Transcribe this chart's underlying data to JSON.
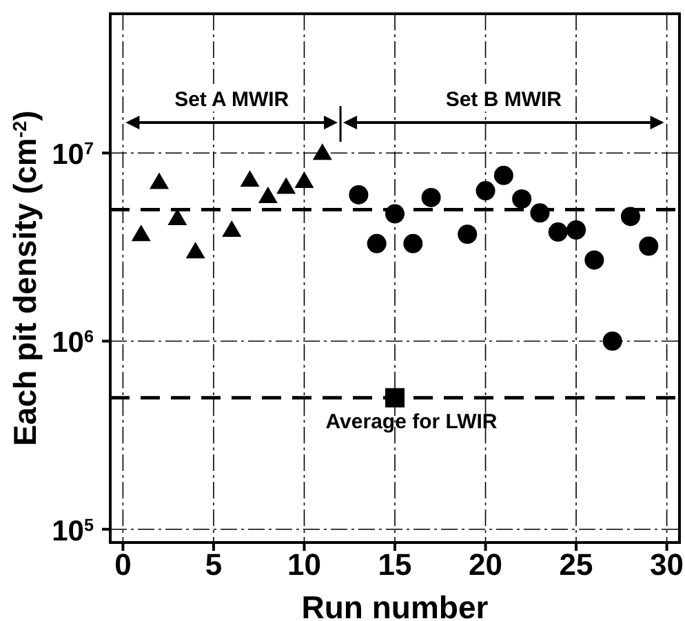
{
  "chart_data": {
    "type": "scatter",
    "xlabel": "Run number",
    "ylabel": "Each pit density (cm$^{-2}$)",
    "xlim": [
      -0.7,
      30.7
    ],
    "xticks": [
      0,
      5,
      10,
      15,
      20,
      25,
      30
    ],
    "ylim": [
      85000,
      55000000
    ],
    "yticks": [
      {
        "value": 100000,
        "label": "10$^{5}$"
      },
      {
        "value": 1000000,
        "label": "10$^{6}$"
      },
      {
        "value": 10000000,
        "label": "10$^{7}$"
      }
    ],
    "log": "y",
    "grid": true,
    "legend": false,
    "series": [
      {
        "color": "#000000",
        "marker": "triangle",
        "x": [
          1,
          2,
          3,
          4,
          6,
          7,
          8,
          9,
          10,
          11
        ],
        "values": [
          3700000,
          7000000,
          4500000,
          3000000,
          3900000,
          7200000,
          5900000,
          6600000,
          7100000,
          10000000
        ]
      },
      {
        "color": "#000000",
        "marker": "circle",
        "x": [
          13,
          14,
          15,
          16,
          17,
          19,
          20,
          21,
          22,
          23,
          24,
          25,
          26,
          27,
          28,
          29
        ],
        "values": [
          6000000,
          3300000,
          4750000,
          3300000,
          5800000,
          3700000,
          6300000,
          7600000,
          5700000,
          4800000,
          3800000,
          3900000,
          2700000,
          1000000,
          4600000,
          3200000
        ]
      },
      {
        "color": "#000000",
        "marker": "square",
        "x": [
          15
        ],
        "values": [
          500000
        ]
      }
    ],
    "ref_lines": [
      {
        "axis": "y",
        "value": 5000000,
        "line_style": "dashed"
      },
      {
        "axis": "y",
        "value": 500000,
        "label": "Average for LWIR",
        "line_style": "dashed"
      }
    ],
    "annotations": [
      "Set A MWIR",
      "Set B MWIR"
    ]
  }
}
